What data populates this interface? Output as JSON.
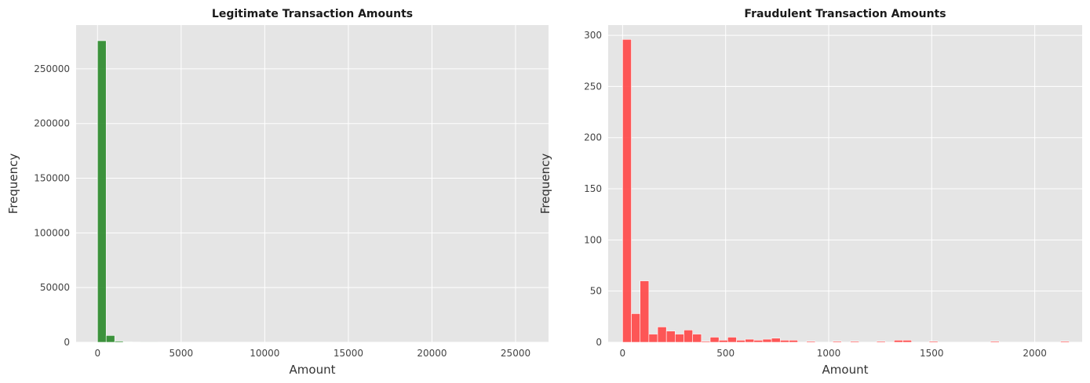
{
  "chart_data": [
    {
      "type": "bar",
      "title": "Legitimate Transaction Amounts",
      "xlabel": "Amount",
      "ylabel": "Frequency",
      "xlim": [
        -1280,
        26970
      ],
      "ylim": [
        0,
        290000
      ],
      "xticks": [
        0,
        5000,
        10000,
        15000,
        20000,
        25000
      ],
      "yticks": [
        0,
        50000,
        100000,
        150000,
        200000,
        250000
      ],
      "bin_width": 514,
      "bins_start": [
        0,
        514,
        1028,
        1542,
        2056,
        2570,
        3084
      ],
      "values": [
        275700,
        6200,
        1050,
        380,
        190,
        90,
        50
      ],
      "color": "#2e8b2e",
      "grid": true,
      "background": "#e5e5e5"
    },
    {
      "type": "bar",
      "title": "Fraudulent Transaction Amounts",
      "xlabel": "Amount",
      "ylabel": "Frequency",
      "xlim": [
        -70,
        2230
      ],
      "ylim": [
        0,
        310
      ],
      "xticks": [
        0,
        500,
        1000,
        1500,
        2000
      ],
      "yticks": [
        0,
        50,
        100,
        150,
        200,
        250,
        300
      ],
      "bin_width": 42.5,
      "bins_start": [
        0,
        42.5,
        85,
        127.5,
        170,
        212.5,
        255,
        297.5,
        340,
        382.5,
        425,
        467.5,
        510,
        552.5,
        595,
        637.5,
        680,
        722.5,
        765,
        807.5,
        892.5,
        1020,
        1105,
        1232.5,
        1317.5,
        1360,
        1487.5,
        1785,
        2125
      ],
      "values": [
        296,
        28,
        60,
        8,
        15,
        11,
        8,
        12,
        8,
        1,
        5,
        2,
        5,
        2,
        3,
        2,
        3,
        4,
        2,
        2,
        1,
        1,
        1,
        1,
        2,
        2,
        1,
        1,
        1
      ],
      "color": "#ff4a4a",
      "grid": true,
      "background": "#e5e5e5"
    }
  ]
}
